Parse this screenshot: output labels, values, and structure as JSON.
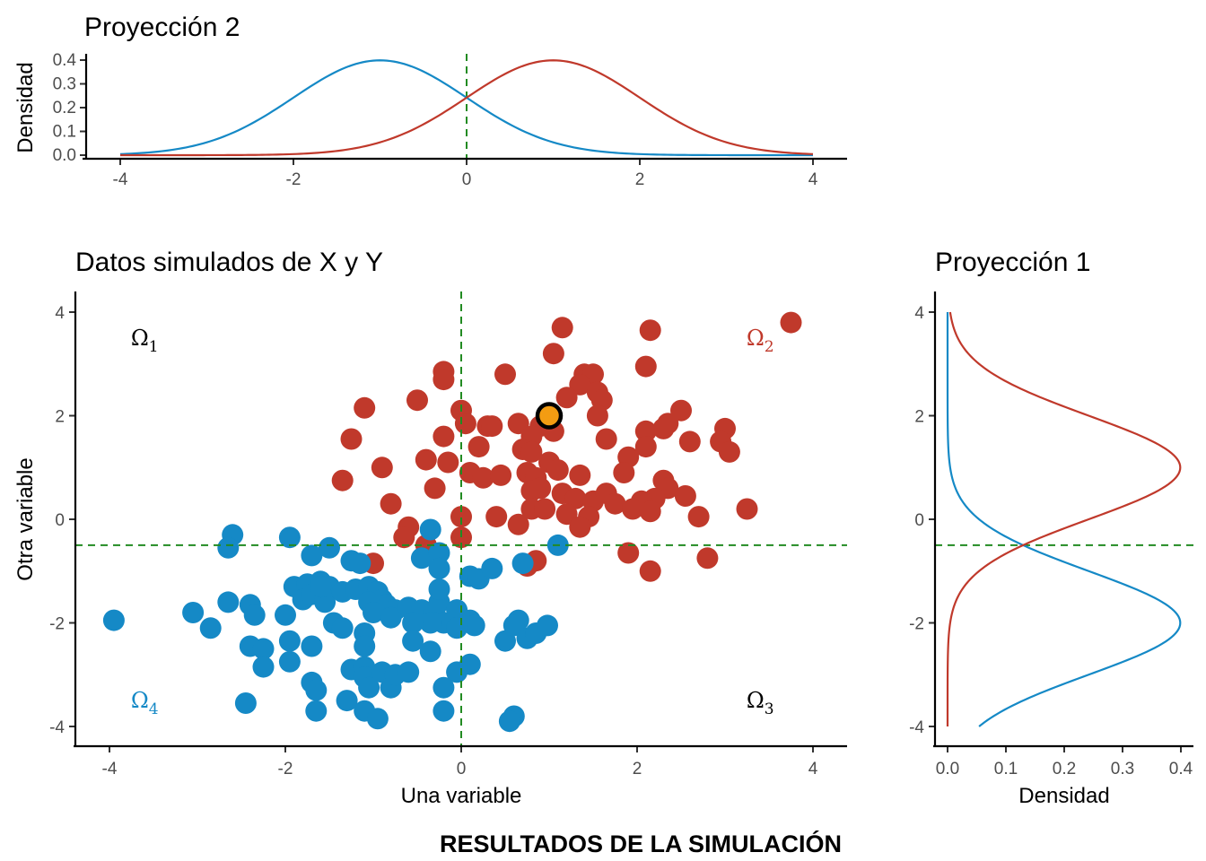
{
  "caption": "RESULTADOS DE LA SIMULACIÓN",
  "colors": {
    "red": "#c0392b",
    "blue": "#1589c6",
    "green": "#228b22",
    "highlight": "#f39c12"
  },
  "chart_data": [
    {
      "id": "top",
      "type": "line",
      "title": "Proyección 2",
      "xlabel": "",
      "ylabel": "Densidad",
      "xlim": [
        -4,
        4
      ],
      "ylim": [
        0,
        0.4
      ],
      "xticks": [
        "-4",
        "-2",
        "0",
        "2",
        "4"
      ],
      "yticks": [
        "0.0",
        "0.1",
        "0.2",
        "0.3",
        "0.4"
      ],
      "series": [
        {
          "color": "#1589c6",
          "mean": -1,
          "sd": 1
        },
        {
          "color": "#c0392b",
          "mean": 1,
          "sd": 1
        }
      ],
      "vline": 0
    },
    {
      "id": "main",
      "type": "scatter",
      "title": "Datos simulados de X y Y",
      "xlabel": "Una variable",
      "ylabel": "Otra variable",
      "xlim": [
        -4,
        4
      ],
      "ylim": [
        -4,
        4
      ],
      "xticks": [
        "-4",
        "-2",
        "0",
        "2",
        "4"
      ],
      "yticks": [
        "-4",
        "-2",
        "0",
        "2",
        "4"
      ],
      "vline": 0,
      "hline": -0.5,
      "regions": [
        {
          "symbol": "Ω",
          "sub": "1",
          "color": "#000000",
          "x": -3.6,
          "y": 3.5
        },
        {
          "symbol": "Ω",
          "sub": "2",
          "color": "#c0392b",
          "x": 3.4,
          "y": 3.5
        },
        {
          "symbol": "Ω",
          "sub": "3",
          "color": "#000000",
          "x": 3.4,
          "y": -3.5
        },
        {
          "symbol": "Ω",
          "sub": "4",
          "color": "#1589c6",
          "x": -3.6,
          "y": -3.5
        }
      ],
      "highlight": {
        "x": 1.0,
        "y": 2.0
      },
      "series": [
        {
          "color": "#c0392b",
          "points": [
            [
              3.75,
              3.8
            ],
            [
              1.15,
              3.7
            ],
            [
              2.15,
              3.65
            ],
            [
              1.05,
              3.2
            ],
            [
              2.1,
              2.95
            ],
            [
              -0.2,
              2.85
            ],
            [
              -0.2,
              2.7
            ],
            [
              0.5,
              2.8
            ],
            [
              1.4,
              2.8
            ],
            [
              1.5,
              2.8
            ],
            [
              1.35,
              2.6
            ],
            [
              1.55,
              2.45
            ],
            [
              1.6,
              2.3
            ],
            [
              1.2,
              2.35
            ],
            [
              -0.5,
              2.3
            ],
            [
              -1.1,
              2.15
            ],
            [
              0.0,
              2.1
            ],
            [
              0.3,
              1.8
            ],
            [
              0.05,
              1.85
            ],
            [
              1.55,
              2.0
            ],
            [
              2.5,
              2.1
            ],
            [
              2.35,
              1.85
            ],
            [
              2.3,
              1.75
            ],
            [
              2.1,
              1.7
            ],
            [
              3.0,
              1.75
            ],
            [
              0.35,
              1.8
            ],
            [
              0.65,
              1.85
            ],
            [
              0.9,
              1.8
            ],
            [
              0.8,
              1.6
            ],
            [
              1.05,
              1.7
            ],
            [
              -1.25,
              1.55
            ],
            [
              -0.2,
              1.6
            ],
            [
              0.2,
              1.4
            ],
            [
              0.7,
              1.35
            ],
            [
              0.8,
              1.3
            ],
            [
              1.65,
              1.55
            ],
            [
              2.6,
              1.5
            ],
            [
              2.95,
              1.5
            ],
            [
              3.05,
              1.3
            ],
            [
              2.1,
              1.4
            ],
            [
              1.9,
              1.2
            ],
            [
              -0.4,
              1.15
            ],
            [
              -0.15,
              1.1
            ],
            [
              -0.9,
              1.0
            ],
            [
              0.1,
              0.9
            ],
            [
              0.25,
              0.8
            ],
            [
              0.45,
              0.85
            ],
            [
              0.75,
              0.9
            ],
            [
              0.85,
              0.8
            ],
            [
              1.0,
              1.1
            ],
            [
              1.1,
              0.95
            ],
            [
              1.35,
              0.85
            ],
            [
              1.85,
              0.9
            ],
            [
              0.8,
              0.55
            ],
            [
              0.9,
              0.6
            ],
            [
              1.15,
              0.5
            ],
            [
              1.3,
              0.4
            ],
            [
              1.5,
              0.35
            ],
            [
              1.65,
              0.5
            ],
            [
              1.75,
              0.3
            ],
            [
              -1.35,
              0.75
            ],
            [
              -0.3,
              0.6
            ],
            [
              2.3,
              0.75
            ],
            [
              2.35,
              0.6
            ],
            [
              2.55,
              0.45
            ],
            [
              2.2,
              0.4
            ],
            [
              2.05,
              0.35
            ],
            [
              1.95,
              0.2
            ],
            [
              2.15,
              0.15
            ],
            [
              2.7,
              0.05
            ],
            [
              3.25,
              0.2
            ],
            [
              -0.8,
              0.3
            ],
            [
              0.0,
              0.05
            ],
            [
              0.4,
              0.05
            ],
            [
              0.65,
              -0.1
            ],
            [
              0.8,
              0.2
            ],
            [
              0.95,
              0.2
            ],
            [
              1.2,
              0.1
            ],
            [
              1.45,
              0.05
            ],
            [
              1.35,
              -0.15
            ],
            [
              -0.6,
              -0.15
            ],
            [
              -0.65,
              -0.35
            ],
            [
              0.0,
              -0.35
            ],
            [
              -0.4,
              -0.5
            ],
            [
              -1.0,
              -0.85
            ],
            [
              0.75,
              -0.9
            ],
            [
              0.85,
              -0.8
            ],
            [
              1.9,
              -0.65
            ],
            [
              2.8,
              -0.75
            ],
            [
              2.15,
              -1.0
            ]
          ]
        },
        {
          "color": "#1589c6",
          "points": [
            [
              -2.6,
              -0.3
            ],
            [
              -2.65,
              -0.55
            ],
            [
              -1.95,
              -0.35
            ],
            [
              -1.5,
              -0.55
            ],
            [
              -1.7,
              -0.7
            ],
            [
              -1.25,
              -0.8
            ],
            [
              -1.15,
              -0.85
            ],
            [
              -0.35,
              -0.2
            ],
            [
              -0.45,
              -0.75
            ],
            [
              -0.25,
              -0.65
            ],
            [
              -0.25,
              -0.95
            ],
            [
              0.1,
              -1.1
            ],
            [
              0.2,
              -1.15
            ],
            [
              0.35,
              -0.95
            ],
            [
              0.7,
              -0.85
            ],
            [
              1.1,
              -0.5
            ],
            [
              -3.95,
              -1.95
            ],
            [
              -3.05,
              -1.8
            ],
            [
              -2.85,
              -2.1
            ],
            [
              -2.65,
              -1.6
            ],
            [
              -2.4,
              -1.65
            ],
            [
              -2.35,
              -1.85
            ],
            [
              -2.4,
              -2.45
            ],
            [
              -2.25,
              -2.5
            ],
            [
              -2.25,
              -2.85
            ],
            [
              -2.0,
              -1.85
            ],
            [
              -1.95,
              -2.35
            ],
            [
              -1.95,
              -2.75
            ],
            [
              -1.9,
              -1.3
            ],
            [
              -1.75,
              -1.25
            ],
            [
              -1.8,
              -1.55
            ],
            [
              -1.7,
              -1.45
            ],
            [
              -1.6,
              -1.2
            ],
            [
              -1.55,
              -1.6
            ],
            [
              -1.5,
              -1.3
            ],
            [
              -1.35,
              -1.4
            ],
            [
              -1.2,
              -1.35
            ],
            [
              -1.05,
              -1.3
            ],
            [
              -0.95,
              -1.4
            ],
            [
              -0.9,
              -1.55
            ],
            [
              -0.85,
              -1.65
            ],
            [
              -0.75,
              -1.75
            ],
            [
              -1.05,
              -1.6
            ],
            [
              -1.0,
              -1.8
            ],
            [
              -0.8,
              -1.9
            ],
            [
              -0.6,
              -1.7
            ],
            [
              -0.45,
              -1.75
            ],
            [
              -0.3,
              -1.8
            ],
            [
              -0.25,
              -1.6
            ],
            [
              -0.25,
              -1.35
            ],
            [
              -0.05,
              -1.75
            ],
            [
              -0.2,
              -2.0
            ],
            [
              -0.05,
              -2.1
            ],
            [
              0.1,
              -1.95
            ],
            [
              0.15,
              -2.05
            ],
            [
              -0.35,
              -2.0
            ],
            [
              -0.55,
              -2.0
            ],
            [
              -1.45,
              -2.0
            ],
            [
              -1.35,
              -2.1
            ],
            [
              -1.1,
              -2.2
            ],
            [
              -1.1,
              -2.45
            ],
            [
              -1.7,
              -2.45
            ],
            [
              -2.45,
              -3.55
            ],
            [
              -1.7,
              -3.15
            ],
            [
              -1.65,
              -3.3
            ],
            [
              -1.65,
              -3.7
            ],
            [
              -1.3,
              -3.5
            ],
            [
              -1.25,
              -2.9
            ],
            [
              -1.1,
              -2.85
            ],
            [
              -1.1,
              -3.05
            ],
            [
              -1.05,
              -3.25
            ],
            [
              -0.9,
              -2.95
            ],
            [
              -0.8,
              -3.25
            ],
            [
              -0.75,
              -3.0
            ],
            [
              -0.6,
              -2.95
            ],
            [
              -0.55,
              -2.35
            ],
            [
              -0.35,
              -2.55
            ],
            [
              -0.05,
              -2.95
            ],
            [
              0.1,
              -2.8
            ],
            [
              -0.2,
              -3.25
            ],
            [
              -0.2,
              -3.7
            ],
            [
              -1.1,
              -3.7
            ],
            [
              -0.95,
              -3.85
            ],
            [
              0.5,
              -2.35
            ],
            [
              0.65,
              -1.95
            ],
            [
              0.6,
              -2.05
            ],
            [
              0.75,
              -2.3
            ],
            [
              0.85,
              -2.2
            ],
            [
              0.98,
              -2.05
            ],
            [
              0.6,
              -3.8
            ],
            [
              0.55,
              -3.9
            ],
            [
              -1.6,
              -1.3
            ]
          ]
        }
      ]
    },
    {
      "id": "right",
      "type": "line",
      "title": "Proyección 1",
      "xlabel": "Densidad",
      "ylabel": "",
      "xlim": [
        0,
        0.4
      ],
      "ylim": [
        -4,
        4
      ],
      "xticks": [
        "0.0",
        "0.1",
        "0.2",
        "0.3",
        "0.4"
      ],
      "yticks": [
        "-4",
        "-2",
        "0",
        "2",
        "4"
      ],
      "series": [
        {
          "color": "#1589c6",
          "mean": -2,
          "sd": 1
        },
        {
          "color": "#c0392b",
          "mean": 1,
          "sd": 1
        }
      ],
      "hline": -0.5
    }
  ]
}
